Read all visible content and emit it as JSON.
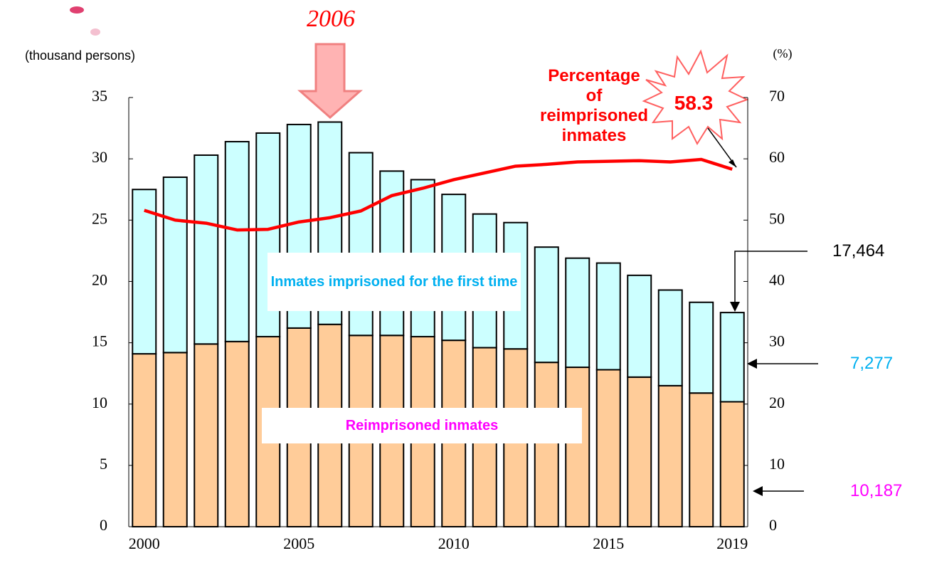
{
  "chart_data": {
    "type": "bar",
    "stacked": true,
    "y_label": "(thousand persons)",
    "y2_label": "(%)",
    "categories": [
      "2000",
      null,
      null,
      null,
      null,
      "2005",
      null,
      null,
      null,
      null,
      "2010",
      null,
      null,
      null,
      null,
      "2015",
      null,
      null,
      null,
      "2019"
    ],
    "series": [
      {
        "name": "Reimprisoned inmates",
        "color": "#ffcc99",
        "label_color": "#ff00ff",
        "values": [
          14.1,
          14.2,
          14.9,
          15.1,
          15.5,
          16.2,
          16.5,
          15.6,
          15.6,
          15.5,
          15.2,
          14.6,
          14.5,
          13.4,
          13.0,
          12.8,
          12.2,
          11.5,
          10.9,
          10.187
        ],
        "value_labels": [
          null,
          null,
          null,
          null,
          null,
          null,
          null,
          null,
          null,
          null,
          null,
          null,
          null,
          null,
          null,
          null,
          null,
          null,
          null,
          "10,187"
        ]
      },
      {
        "name": "Inmates imprisoned for the first time",
        "color": "#ccffff",
        "label_color": "#00b0f0",
        "values": [
          13.4,
          14.3,
          15.4,
          16.3,
          16.6,
          16.6,
          16.5,
          14.9,
          13.4,
          12.8,
          11.9,
          10.9,
          10.3,
          9.4,
          8.9,
          8.7,
          8.3,
          7.8,
          7.4,
          7.277
        ],
        "value_labels": [
          null,
          null,
          null,
          null,
          null,
          null,
          null,
          null,
          null,
          null,
          null,
          null,
          null,
          null,
          null,
          null,
          null,
          null,
          null,
          "7,277"
        ]
      },
      {
        "name": "Percentage of reimprisoned inmates",
        "type": "line",
        "axis": "y2",
        "color": "#ff0000",
        "label_color": "#ff0000",
        "values": [
          51.6,
          50.0,
          49.5,
          48.4,
          48.5,
          49.7,
          50.4,
          51.5,
          54.0,
          55.2,
          56.6,
          57.7,
          58.8,
          59.1,
          59.5,
          59.6,
          59.7,
          59.5,
          59.9,
          58.3
        ],
        "value_labels": [
          null,
          null,
          null,
          null,
          null,
          null,
          null,
          null,
          null,
          null,
          null,
          null,
          null,
          null,
          null,
          null,
          null,
          null,
          null,
          "58.3"
        ]
      }
    ],
    "total_label": "17,464",
    "highlight": {
      "category": "2006",
      "color": "#ff0000"
    },
    "ylim": [
      0,
      35
    ],
    "yticks": [
      0,
      5,
      10,
      15,
      20,
      25,
      30,
      35
    ],
    "y2lim": [
      0,
      70
    ],
    "y2ticks": [
      0,
      10,
      20,
      30,
      40,
      50,
      60,
      70
    ],
    "grid": false
  }
}
